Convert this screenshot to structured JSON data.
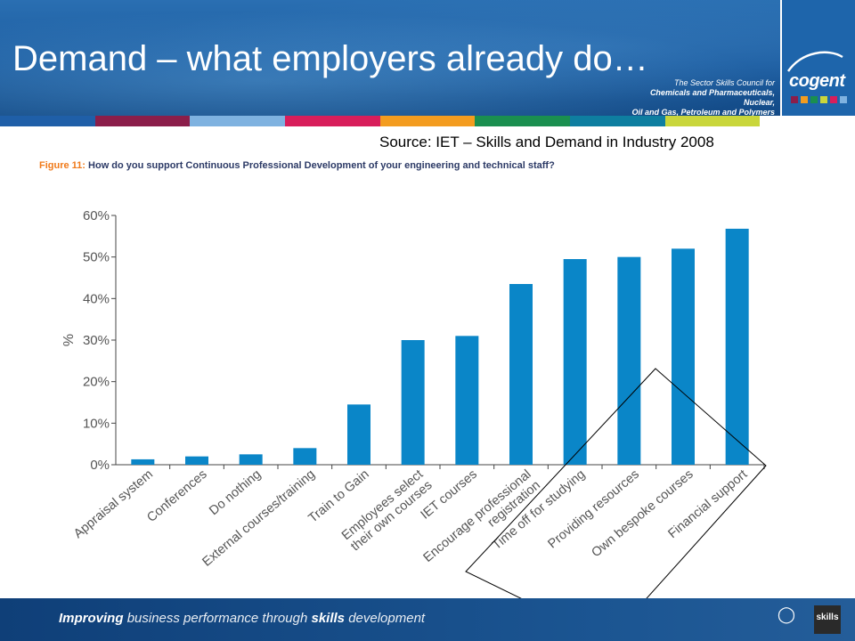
{
  "slide": {
    "title": "Demand – what employers already do…",
    "council_lines": [
      "The Sector Skills Council for",
      "Chemicals and Pharmaceuticals, Nuclear,",
      "Oil and Gas, Petroleum and Polymers"
    ],
    "logo": "cogent",
    "stripe_colors": [
      "#1f5fa8",
      "#8b1e4a",
      "#7fb2e0",
      "#d81e5b",
      "#f39c1f",
      "#1a8f4f",
      "#0e7ea0",
      "#c9d63b",
      "#ffffff"
    ],
    "source": "Source: IET – Skills and Demand in Industry 2008",
    "figure_label": "Figure 11:",
    "figure_question": "How do you support Continuous Professional Development of your engineering and technical staff?",
    "footer": {
      "part1": "Improving",
      "part2": "business performance through",
      "part3": "skills",
      "part4": "development",
      "logo2": "skills"
    }
  },
  "chart_data": {
    "type": "bar",
    "title": "How do you support Continuous Professional Development of your engineering and technical staff?",
    "ylabel": "%",
    "xlabel": "",
    "ylim": [
      0,
      60
    ],
    "yticks": [
      0,
      10,
      20,
      30,
      40,
      50,
      60
    ],
    "ytick_labels": [
      "0%",
      "10%",
      "20%",
      "30%",
      "40%",
      "50%",
      "60%"
    ],
    "categories": [
      [
        "Appraisal system"
      ],
      [
        "Conferences"
      ],
      [
        "Do nothing"
      ],
      [
        "External courses/training"
      ],
      [
        "Train to Gain"
      ],
      [
        "Employees select",
        "their own courses"
      ],
      [
        "IET courses"
      ],
      [
        "Encourage professional",
        "registration"
      ],
      [
        "Time off for studying"
      ],
      [
        "Providing resources"
      ],
      [
        "Own bespoke courses"
      ],
      [
        "Financial support"
      ]
    ],
    "values": [
      1.3,
      2.0,
      2.5,
      4.0,
      14.5,
      30.0,
      31.0,
      43.5,
      49.5,
      50.0,
      52.0,
      56.8
    ],
    "bar_color": "#0a86c8",
    "grid": false,
    "annotation": "highlight diamond around last four categories"
  }
}
